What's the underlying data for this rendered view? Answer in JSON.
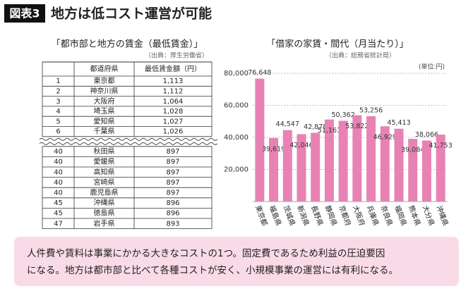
{
  "header": {
    "badge": "図表3",
    "title": "地方は低コスト運営が可能"
  },
  "table": {
    "title": "「都市部と地方の賃金（最低賃金）」",
    "source": "（出典：厚生労働省）",
    "columns": [
      "都道府県",
      "最低賃金額（円）"
    ],
    "top_rows": [
      [
        "1",
        "東京都",
        "1,113"
      ],
      [
        "2",
        "神奈川県",
        "1,112"
      ],
      [
        "3",
        "大阪府",
        "1,064"
      ],
      [
        "4",
        "埼玉県",
        "1,028"
      ],
      [
        "5",
        "愛知県",
        "1,027"
      ],
      [
        "6",
        "千葉県",
        "1,026"
      ]
    ],
    "bottom_rows": [
      [
        "40",
        "秋田県",
        "897"
      ],
      [
        "40",
        "愛媛県",
        "897"
      ],
      [
        "40",
        "高知県",
        "897"
      ],
      [
        "40",
        "宮崎県",
        "897"
      ],
      [
        "40",
        "鹿児島県",
        "897"
      ],
      [
        "45",
        "沖縄県",
        "896"
      ],
      [
        "45",
        "徳島県",
        "896"
      ],
      [
        "47",
        "岩手県",
        "893"
      ]
    ]
  },
  "chart_data": {
    "type": "bar",
    "title": "「借家の家賃・間代（月当たり）」",
    "subtitle": "（出典：総務省統計局）",
    "unit_label": "(単位:円)",
    "categories": [
      "東京都",
      "福島県",
      "茨城県",
      "新潟県",
      "長野県",
      "静岡県",
      "京都府",
      "大阪府",
      "兵庫県",
      "奈良県",
      "福岡県",
      "熊本県",
      "大分県",
      "沖縄県"
    ],
    "values": [
      76648,
      39619,
      44547,
      42046,
      42878,
      51161,
      50362,
      53822,
      53256,
      46929,
      45413,
      39084,
      38066,
      41753
    ],
    "value_labels": [
      "76,648",
      "39,619",
      "44,547",
      "42,046",
      "42,878",
      "51,161",
      "50,362",
      "53,822",
      "53,256",
      "46,929",
      "45,413",
      "39,084",
      "38,066",
      "41,753"
    ],
    "color": "#e882b4",
    "ylim": [
      0,
      80000
    ],
    "yticks": [
      {
        "value": 20000,
        "label": "20,000"
      },
      {
        "value": 40000,
        "label": "40,000"
      },
      {
        "value": 60000,
        "label": "60,000"
      },
      {
        "value": 80000,
        "label": "80,000"
      }
    ],
    "grid": true
  },
  "footer": {
    "lines": [
      "人件費や賃料は事業にかかる大きなコストの1つ。固定費であるため利益の圧迫要因",
      "になる。地方は都市部と比べて各種コストが安く、小規模事業の運営には有利になる。"
    ]
  }
}
